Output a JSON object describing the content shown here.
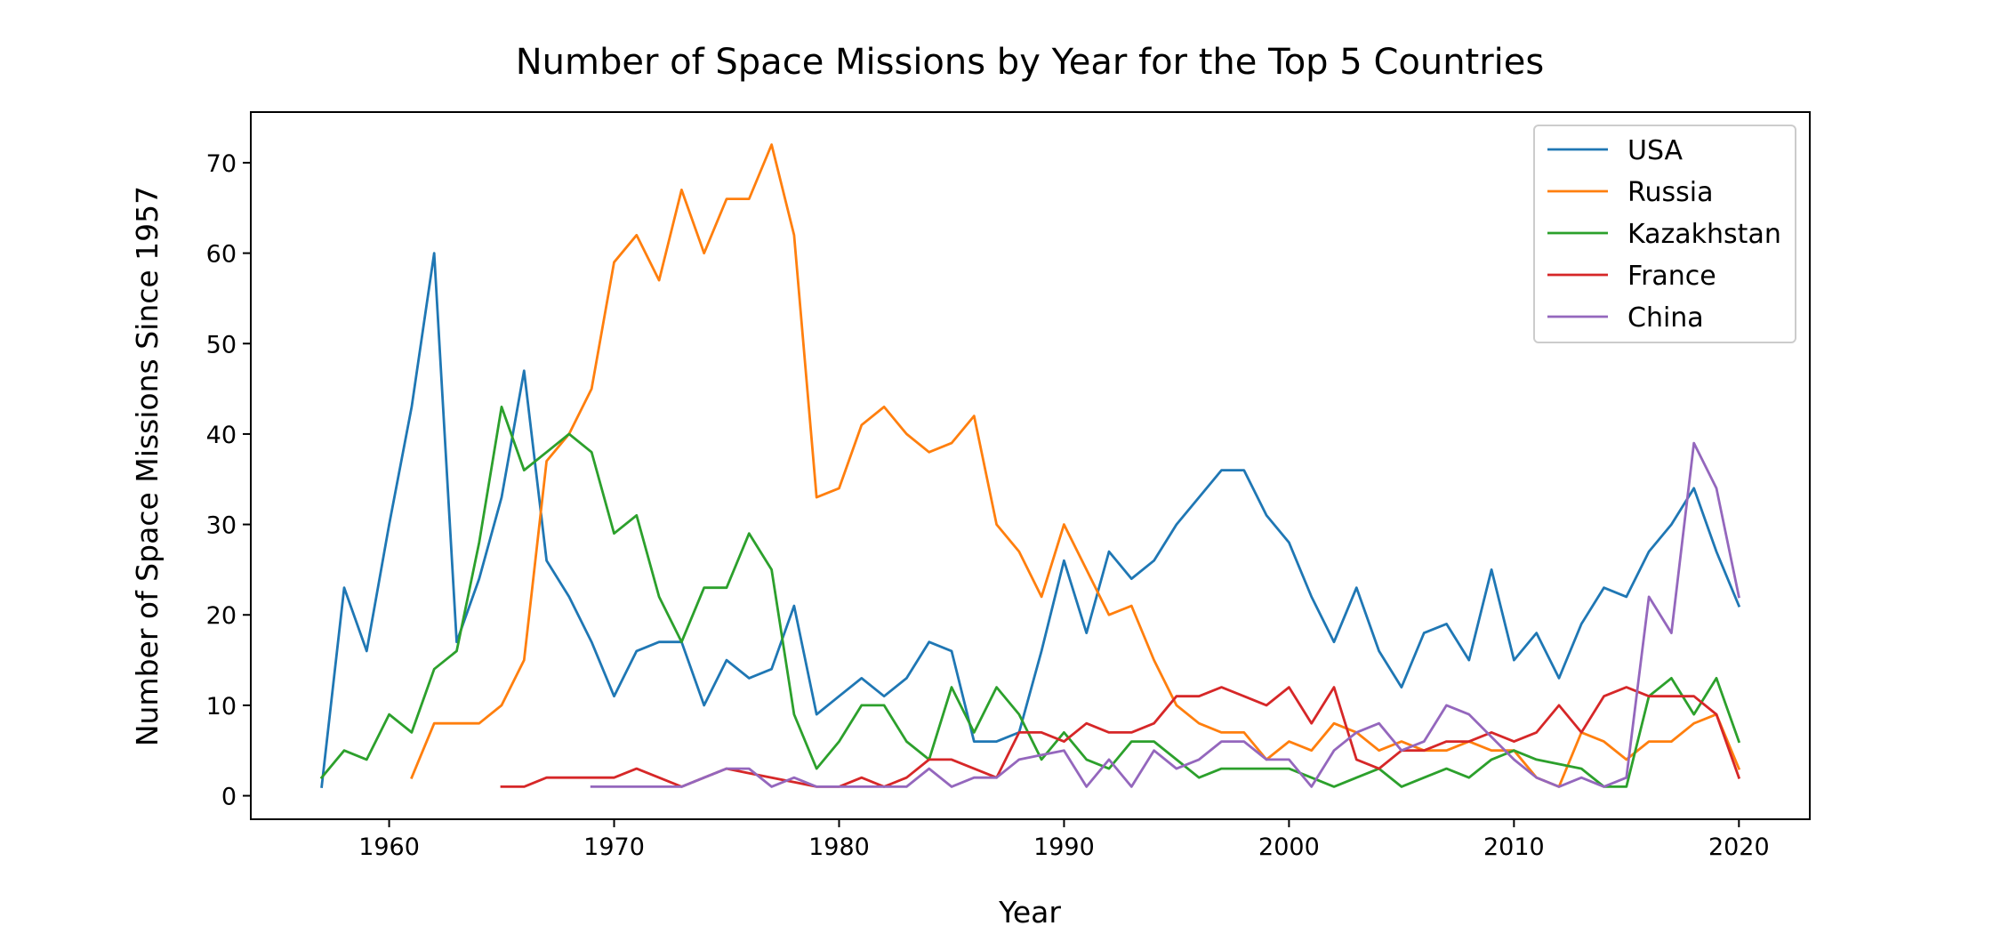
{
  "chart_data": {
    "type": "line",
    "title": "Number of Space Missions by Year for the Top 5 Countries",
    "xlabel": "Year",
    "ylabel": "Number of Space Missions Since 1957",
    "xlim": [
      1953.85,
      2023.15
    ],
    "ylim": [
      -2.6,
      75.6
    ],
    "xticks": [
      1960,
      1970,
      1980,
      1990,
      2000,
      2010,
      2020
    ],
    "yticks": [
      0,
      10,
      20,
      30,
      40,
      50,
      60,
      70
    ],
    "grid": false,
    "legend_position": "top-right",
    "series": [
      {
        "name": "USA",
        "color": "#1f77b4",
        "points": [
          [
            1957,
            1
          ],
          [
            1958,
            23
          ],
          [
            1959,
            16
          ],
          [
            1960,
            30
          ],
          [
            1961,
            43
          ],
          [
            1962,
            60
          ],
          [
            1963,
            17
          ],
          [
            1964,
            24
          ],
          [
            1965,
            33
          ],
          [
            1966,
            47
          ],
          [
            1967,
            26
          ],
          [
            1968,
            22
          ],
          [
            1969,
            17
          ],
          [
            1970,
            11
          ],
          [
            1971,
            16
          ],
          [
            1972,
            17
          ],
          [
            1973,
            17
          ],
          [
            1974,
            10
          ],
          [
            1975,
            15
          ],
          [
            1976,
            13
          ],
          [
            1977,
            14
          ],
          [
            1978,
            21
          ],
          [
            1979,
            9
          ],
          [
            1980,
            11
          ],
          [
            1981,
            13
          ],
          [
            1982,
            11
          ],
          [
            1983,
            13
          ],
          [
            1984,
            17
          ],
          [
            1985,
            16
          ],
          [
            1986,
            6
          ],
          [
            1987,
            6
          ],
          [
            1988,
            7
          ],
          [
            1989,
            16
          ],
          [
            1990,
            26
          ],
          [
            1991,
            18
          ],
          [
            1992,
            27
          ],
          [
            1993,
            24
          ],
          [
            1994,
            26
          ],
          [
            1995,
            30
          ],
          [
            1996,
            33
          ],
          [
            1997,
            36
          ],
          [
            1998,
            36
          ],
          [
            1999,
            31
          ],
          [
            2000,
            28
          ],
          [
            2001,
            22
          ],
          [
            2002,
            17
          ],
          [
            2003,
            23
          ],
          [
            2004,
            16
          ],
          [
            2005,
            12
          ],
          [
            2006,
            18
          ],
          [
            2007,
            19
          ],
          [
            2008,
            15
          ],
          [
            2009,
            25
          ],
          [
            2010,
            15
          ],
          [
            2011,
            18
          ],
          [
            2012,
            13
          ],
          [
            2013,
            19
          ],
          [
            2014,
            23
          ],
          [
            2015,
            22
          ],
          [
            2016,
            27
          ],
          [
            2017,
            30
          ],
          [
            2018,
            34
          ],
          [
            2019,
            27
          ],
          [
            2020,
            21
          ]
        ]
      },
      {
        "name": "Russia",
        "color": "#ff7f0e",
        "points": [
          [
            1961,
            2
          ],
          [
            1962,
            8
          ],
          [
            1963,
            8
          ],
          [
            1964,
            8
          ],
          [
            1965,
            10
          ],
          [
            1966,
            15
          ],
          [
            1967,
            37
          ],
          [
            1968,
            40
          ],
          [
            1969,
            45
          ],
          [
            1970,
            59
          ],
          [
            1971,
            62
          ],
          [
            1972,
            57
          ],
          [
            1973,
            67
          ],
          [
            1974,
            60
          ],
          [
            1975,
            66
          ],
          [
            1976,
            66
          ],
          [
            1977,
            72
          ],
          [
            1978,
            62
          ],
          [
            1979,
            33
          ],
          [
            1980,
            34
          ],
          [
            1981,
            41
          ],
          [
            1982,
            43
          ],
          [
            1983,
            40
          ],
          [
            1984,
            38
          ],
          [
            1985,
            39
          ],
          [
            1986,
            42
          ],
          [
            1987,
            30
          ],
          [
            1988,
            27
          ],
          [
            1989,
            22
          ],
          [
            1990,
            30
          ],
          [
            1991,
            25
          ],
          [
            1992,
            20
          ],
          [
            1993,
            21
          ],
          [
            1994,
            15
          ],
          [
            1995,
            10
          ],
          [
            1996,
            8
          ],
          [
            1997,
            7
          ],
          [
            1998,
            7
          ],
          [
            1999,
            4
          ],
          [
            2000,
            6
          ],
          [
            2001,
            5
          ],
          [
            2002,
            8
          ],
          [
            2003,
            7
          ],
          [
            2004,
            5
          ],
          [
            2005,
            6
          ],
          [
            2006,
            5
          ],
          [
            2007,
            5
          ],
          [
            2008,
            6
          ],
          [
            2009,
            5
          ],
          [
            2010,
            5
          ],
          [
            2011,
            2
          ],
          [
            2012,
            1
          ],
          [
            2013,
            7
          ],
          [
            2014,
            6
          ],
          [
            2015,
            4
          ],
          [
            2016,
            6
          ],
          [
            2017,
            6
          ],
          [
            2018,
            8
          ],
          [
            2019,
            9
          ],
          [
            2020,
            3
          ]
        ]
      },
      {
        "name": "Kazakhstan",
        "color": "#2ca02c",
        "points": [
          [
            1957,
            2
          ],
          [
            1958,
            5
          ],
          [
            1959,
            4
          ],
          [
            1960,
            9
          ],
          [
            1961,
            7
          ],
          [
            1962,
            14
          ],
          [
            1963,
            16
          ],
          [
            1964,
            28
          ],
          [
            1965,
            43
          ],
          [
            1966,
            36
          ],
          [
            1967,
            38
          ],
          [
            1968,
            40
          ],
          [
            1969,
            38
          ],
          [
            1970,
            29
          ],
          [
            1971,
            31
          ],
          [
            1972,
            22
          ],
          [
            1973,
            17
          ],
          [
            1974,
            23
          ],
          [
            1975,
            23
          ],
          [
            1976,
            29
          ],
          [
            1977,
            25
          ],
          [
            1978,
            9
          ],
          [
            1979,
            3
          ],
          [
            1980,
            6
          ],
          [
            1981,
            10
          ],
          [
            1982,
            10
          ],
          [
            1983,
            6
          ],
          [
            1984,
            4
          ],
          [
            1985,
            12
          ],
          [
            1986,
            7
          ],
          [
            1987,
            12
          ],
          [
            1988,
            9
          ],
          [
            1989,
            4
          ],
          [
            1990,
            7
          ],
          [
            1991,
            4
          ],
          [
            1992,
            3
          ],
          [
            1993,
            6
          ],
          [
            1994,
            6
          ],
          [
            1995,
            4
          ],
          [
            1996,
            2
          ],
          [
            1997,
            3
          ],
          [
            1998,
            3
          ],
          [
            1999,
            3
          ],
          [
            2000,
            3
          ],
          [
            2001,
            2
          ],
          [
            2002,
            1
          ],
          [
            2003,
            2
          ],
          [
            2004,
            3
          ],
          [
            2005,
            1
          ],
          [
            2006,
            2
          ],
          [
            2007,
            3
          ],
          [
            2008,
            2
          ],
          [
            2009,
            4
          ],
          [
            2010,
            5
          ],
          [
            2011,
            4
          ],
          [
            2012,
            3.5
          ],
          [
            2013,
            3
          ],
          [
            2014,
            1
          ],
          [
            2015,
            1
          ],
          [
            2016,
            11
          ],
          [
            2017,
            13
          ],
          [
            2018,
            9
          ],
          [
            2019,
            13
          ],
          [
            2020,
            6
          ]
        ]
      },
      {
        "name": "France",
        "color": "#d62728",
        "points": [
          [
            1965,
            1
          ],
          [
            1966,
            1
          ],
          [
            1967,
            2
          ],
          [
            1968,
            2
          ],
          [
            1969,
            2
          ],
          [
            1970,
            2
          ],
          [
            1971,
            3
          ],
          [
            1972,
            2
          ],
          [
            1973,
            1
          ],
          [
            1974,
            2
          ],
          [
            1975,
            3
          ],
          [
            1976,
            2.5
          ],
          [
            1977,
            2
          ],
          [
            1978,
            1.5
          ],
          [
            1979,
            1
          ],
          [
            1980,
            1
          ],
          [
            1981,
            2
          ],
          [
            1982,
            1
          ],
          [
            1983,
            2
          ],
          [
            1984,
            4
          ],
          [
            1985,
            4
          ],
          [
            1986,
            3
          ],
          [
            1987,
            2
          ],
          [
            1988,
            7
          ],
          [
            1989,
            7
          ],
          [
            1990,
            6
          ],
          [
            1991,
            8
          ],
          [
            1992,
            7
          ],
          [
            1993,
            7
          ],
          [
            1994,
            8
          ],
          [
            1995,
            11
          ],
          [
            1996,
            11
          ],
          [
            1997,
            12
          ],
          [
            1998,
            11
          ],
          [
            1999,
            10
          ],
          [
            2000,
            12
          ],
          [
            2001,
            8
          ],
          [
            2002,
            12
          ],
          [
            2003,
            4
          ],
          [
            2004,
            3
          ],
          [
            2005,
            5
          ],
          [
            2006,
            5
          ],
          [
            2007,
            6
          ],
          [
            2008,
            6
          ],
          [
            2009,
            7
          ],
          [
            2010,
            6
          ],
          [
            2011,
            7
          ],
          [
            2012,
            10
          ],
          [
            2013,
            7
          ],
          [
            2014,
            11
          ],
          [
            2015,
            12
          ],
          [
            2016,
            11
          ],
          [
            2017,
            11
          ],
          [
            2018,
            11
          ],
          [
            2019,
            9
          ],
          [
            2020,
            2
          ]
        ]
      },
      {
        "name": "China",
        "color": "#9467bd",
        "points": [
          [
            1969,
            1
          ],
          [
            1970,
            1
          ],
          [
            1971,
            1
          ],
          [
            1972,
            1
          ],
          [
            1973,
            1
          ],
          [
            1974,
            2
          ],
          [
            1975,
            3
          ],
          [
            1976,
            3
          ],
          [
            1977,
            1
          ],
          [
            1978,
            2
          ],
          [
            1979,
            1
          ],
          [
            1980,
            1
          ],
          [
            1981,
            1
          ],
          [
            1982,
            1
          ],
          [
            1983,
            1
          ],
          [
            1984,
            3
          ],
          [
            1985,
            1
          ],
          [
            1986,
            2
          ],
          [
            1987,
            2
          ],
          [
            1988,
            4
          ],
          [
            1989,
            4.5
          ],
          [
            1990,
            5
          ],
          [
            1991,
            1
          ],
          [
            1992,
            4
          ],
          [
            1993,
            1
          ],
          [
            1994,
            5
          ],
          [
            1995,
            3
          ],
          [
            1996,
            4
          ],
          [
            1997,
            6
          ],
          [
            1998,
            6
          ],
          [
            1999,
            4
          ],
          [
            2000,
            4
          ],
          [
            2001,
            1
          ],
          [
            2002,
            5
          ],
          [
            2003,
            7
          ],
          [
            2004,
            8
          ],
          [
            2005,
            5
          ],
          [
            2006,
            6
          ],
          [
            2007,
            10
          ],
          [
            2008,
            9
          ],
          [
            2009,
            6.5
          ],
          [
            2010,
            4
          ],
          [
            2011,
            2
          ],
          [
            2012,
            1
          ],
          [
            2013,
            2
          ],
          [
            2014,
            1
          ],
          [
            2015,
            2
          ],
          [
            2016,
            22
          ],
          [
            2017,
            18
          ],
          [
            2018,
            39
          ],
          [
            2019,
            34
          ],
          [
            2020,
            22
          ]
        ]
      }
    ]
  }
}
